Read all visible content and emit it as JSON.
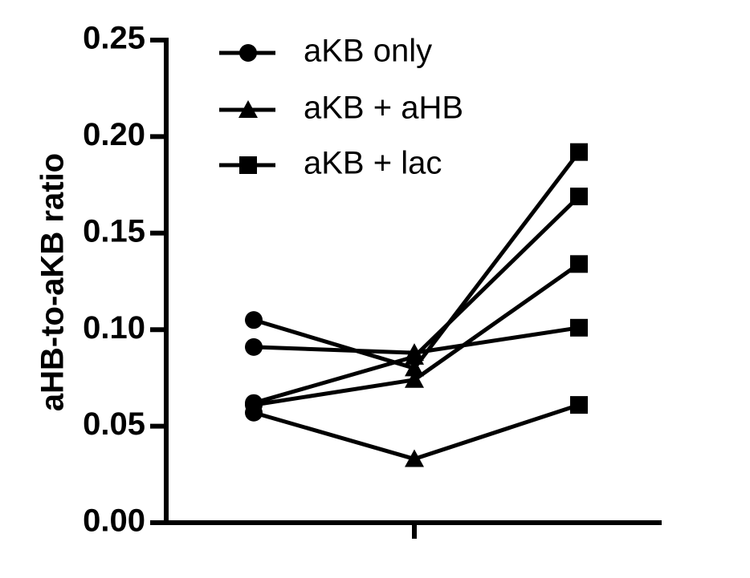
{
  "chart_data": {
    "type": "line",
    "title": "",
    "xlabel": "",
    "ylabel": "aHB-to-aKB ratio",
    "ylim": [
      0,
      0.25
    ],
    "yticks": [
      "0.00",
      "0.05",
      "0.10",
      "0.15",
      "0.20",
      "0.25"
    ],
    "x": [
      1,
      2,
      3
    ],
    "legend": {
      "position": "top-left",
      "entries": [
        {
          "label": "aKB only",
          "marker": "circle"
        },
        {
          "label": "aKB + aHB",
          "marker": "triangle"
        },
        {
          "label": "aKB + lac",
          "marker": "square"
        }
      ]
    },
    "series": [
      {
        "values": [
          0.105,
          0.08,
          0.192
        ]
      },
      {
        "values": [
          0.091,
          0.088,
          0.101
        ]
      },
      {
        "values": [
          0.062,
          0.086,
          0.169
        ]
      },
      {
        "values": [
          0.061,
          0.074,
          0.134
        ]
      },
      {
        "values": [
          0.057,
          0.033,
          0.061
        ]
      }
    ]
  }
}
